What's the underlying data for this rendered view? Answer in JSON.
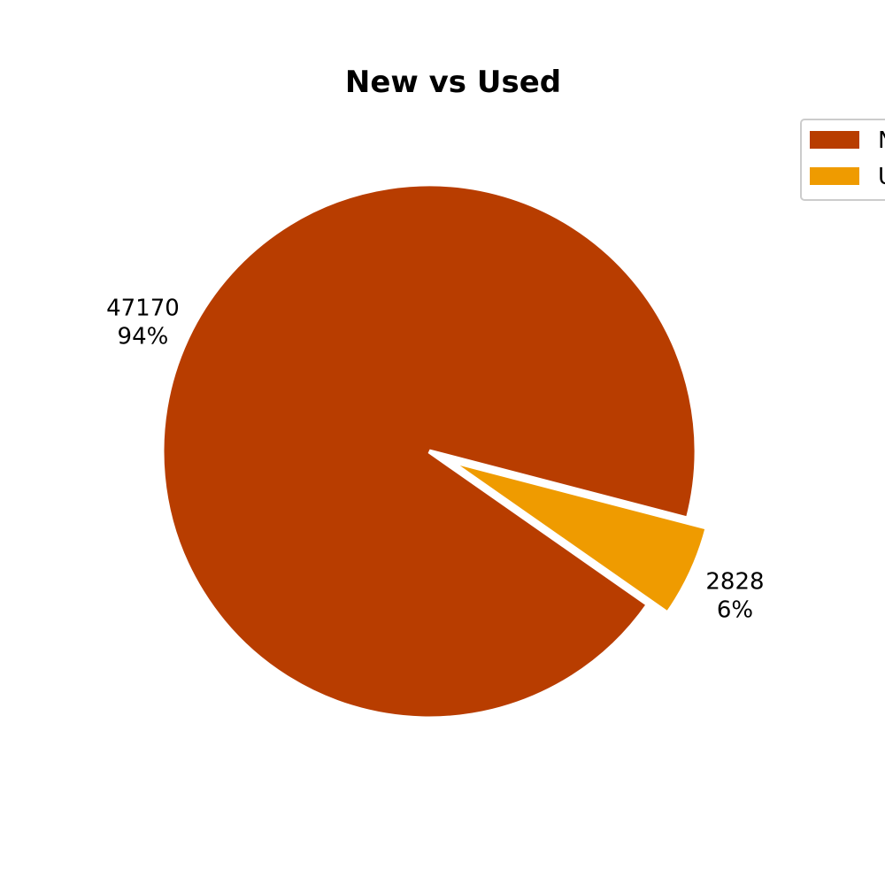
{
  "chart_data": {
    "type": "pie",
    "title": "New vs Used",
    "categories": [
      "New",
      "Used"
    ],
    "values": [
      47170,
      2828
    ],
    "percent_labels": [
      "94%",
      "6%"
    ],
    "colors": [
      "#b83d00",
      "#ef9b00"
    ],
    "explode": [
      0,
      0.08
    ],
    "legend": {
      "placement": "top-right",
      "entries": [
        "New",
        "Used"
      ]
    }
  }
}
